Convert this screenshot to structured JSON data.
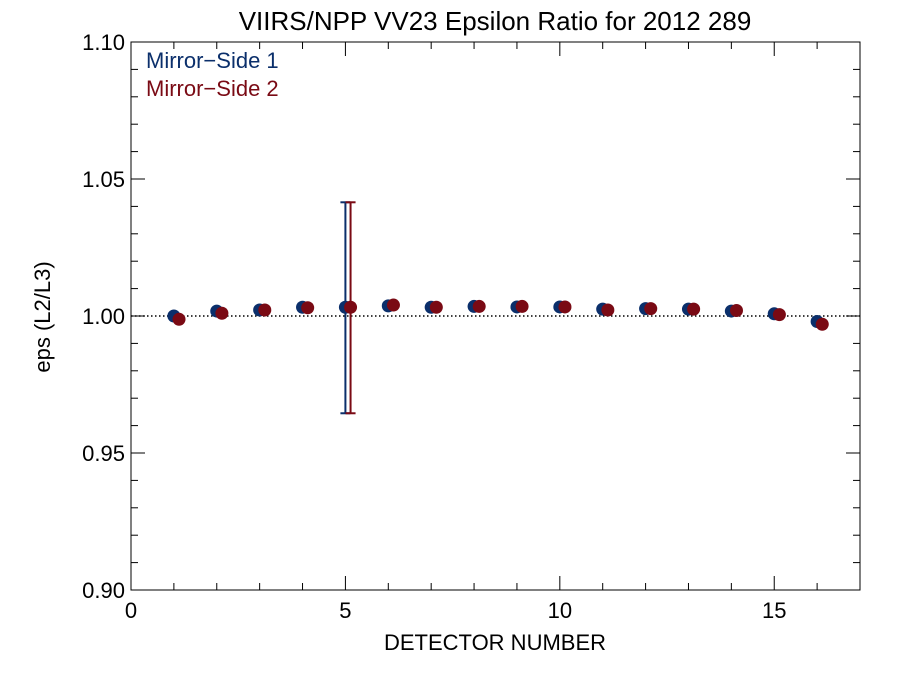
{
  "chart_data": {
    "type": "scatter",
    "title": "VIIRS/NPP VV23 Epsilon Ratio for 2012 289",
    "xlabel": "DETECTOR NUMBER",
    "ylabel": "eps (L2/L3)",
    "xlim": [
      0,
      17
    ],
    "ylim": [
      0.9,
      1.1
    ],
    "x_ticks": [
      0,
      5,
      10,
      15
    ],
    "x_tick_labels": [
      "0",
      "5",
      "10",
      "15"
    ],
    "y_ticks": [
      0.9,
      0.95,
      1.0,
      1.05,
      1.1
    ],
    "y_tick_labels": [
      "0.90",
      "0.95",
      "1.00",
      "1.05",
      "1.10"
    ],
    "reference_line": 1.0,
    "grid": false,
    "legend_position": "top-left",
    "series": [
      {
        "name": "Mirror−Side 1",
        "color": "#0b2f6b",
        "x_offset": 0,
        "x": [
          1,
          2,
          3,
          4,
          5,
          6,
          7,
          8,
          9,
          10,
          11,
          12,
          13,
          14,
          15,
          16
        ],
        "y": [
          1.0,
          1.0018,
          1.0022,
          1.0032,
          1.0032,
          1.0037,
          1.0032,
          1.0035,
          1.0033,
          1.0033,
          1.0025,
          1.0027,
          1.0025,
          1.0018,
          1.0008,
          0.998
        ],
        "error_bars": [
          {
            "x": 5,
            "low": 0.9645,
            "high": 1.0415
          }
        ]
      },
      {
        "name": "Mirror−Side 2",
        "color": "#7a0a14",
        "x_offset": 0.12,
        "x": [
          1,
          2,
          3,
          4,
          5,
          6,
          7,
          8,
          9,
          10,
          11,
          12,
          13,
          14,
          15,
          16
        ],
        "y": [
          0.9988,
          1.001,
          1.0022,
          1.003,
          1.0032,
          1.004,
          1.0032,
          1.0035,
          1.0035,
          1.0033,
          1.0022,
          1.0027,
          1.0025,
          1.002,
          1.0005,
          0.997
        ],
        "error_bars": [
          {
            "x": 5,
            "low": 0.9645,
            "high": 1.0415
          }
        ]
      }
    ]
  }
}
